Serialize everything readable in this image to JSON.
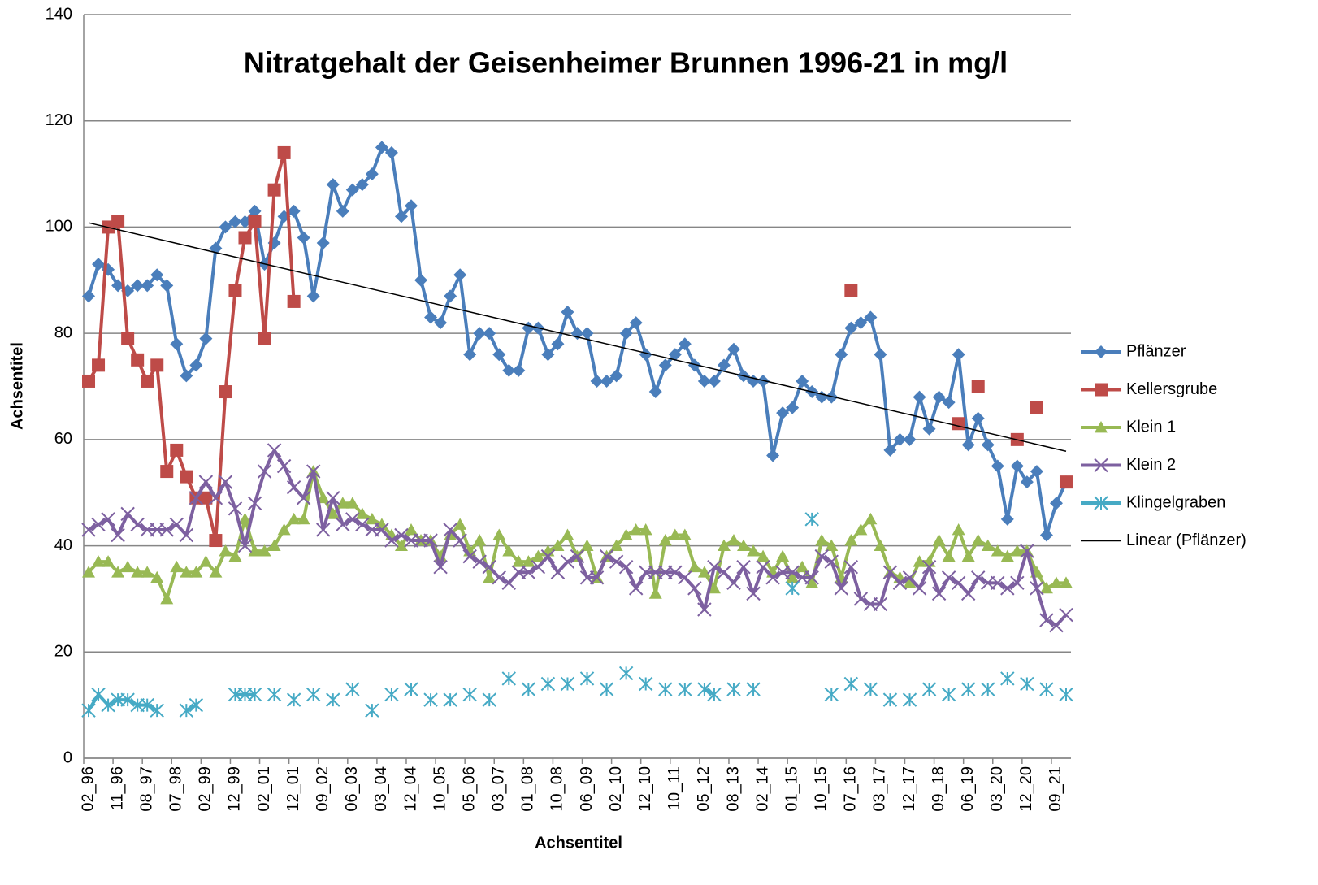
{
  "chart_data": {
    "type": "line",
    "title": "Nitratgehalt der Geisenheimer Brunnen 1996-21 in mg/l",
    "x_label": "Achsentitel",
    "y_label": "Achsentitel",
    "ylim": [
      0,
      140
    ],
    "yticks": [
      0,
      20,
      40,
      60,
      80,
      100,
      120,
      140
    ],
    "grid": true,
    "legend": "right",
    "categories": [
      "02_96",
      null,
      null,
      "11_96",
      null,
      null,
      "08_97",
      null,
      null,
      "07_98",
      null,
      null,
      "02_99",
      null,
      null,
      "12_99",
      null,
      null,
      "02_01",
      null,
      null,
      "12_01",
      null,
      null,
      "09_02",
      null,
      null,
      "06_03",
      null,
      null,
      "03_04",
      null,
      null,
      "12_04",
      null,
      null,
      "10_05",
      null,
      null,
      "05_06",
      null,
      null,
      "03_07",
      null,
      null,
      "01_08",
      null,
      null,
      "10_08",
      null,
      null,
      "06_09",
      null,
      null,
      "02_10",
      null,
      null,
      "12_10",
      null,
      null,
      "10_11",
      null,
      null,
      "05_12",
      null,
      null,
      "08_13",
      null,
      null,
      "02_14",
      null,
      null,
      "01_15",
      null,
      null,
      "10_15",
      null,
      null,
      "07_16",
      null,
      null,
      "03_17",
      null,
      null,
      "12_17",
      null,
      null,
      "09_18",
      null,
      null,
      "06_19",
      null,
      null,
      "03_20",
      null,
      null,
      "12_20",
      null,
      null,
      "09_21",
      null
    ],
    "series": [
      {
        "name": "Pflänzer",
        "color": "#4a7ebb",
        "marker": "diamond",
        "values": [
          87,
          93,
          92,
          89,
          88,
          89,
          89,
          91,
          89,
          78,
          72,
          74,
          79,
          96,
          100,
          101,
          101,
          103,
          93,
          97,
          102,
          103,
          98,
          87,
          97,
          108,
          103,
          107,
          108,
          110,
          115,
          114,
          102,
          104,
          90,
          83,
          82,
          87,
          91,
          76,
          80,
          80,
          76,
          73,
          73,
          81,
          81,
          76,
          78,
          84,
          80,
          80,
          71,
          71,
          72,
          80,
          82,
          76,
          69,
          74,
          76,
          78,
          74,
          71,
          71,
          74,
          77,
          72,
          71,
          71,
          57,
          65,
          66,
          71,
          69,
          68,
          68,
          76,
          81,
          82,
          83,
          76,
          58,
          60,
          60,
          68,
          62,
          68,
          67,
          76,
          59,
          64,
          59,
          55,
          45,
          55,
          52,
          54,
          42,
          48,
          52
        ]
      },
      {
        "name": "Kellersgrube",
        "color": "#be4b48",
        "marker": "square",
        "values": [
          71,
          74,
          100,
          101,
          79,
          75,
          71,
          74,
          54,
          58,
          53,
          49,
          49,
          41,
          69,
          88,
          98,
          101,
          79,
          107,
          114,
          86,
          null,
          null,
          null,
          null,
          null,
          null,
          null,
          null,
          null,
          null,
          null,
          null,
          null,
          null,
          null,
          null,
          null,
          null,
          null,
          null,
          null,
          null,
          null,
          null,
          null,
          null,
          null,
          null,
          null,
          null,
          null,
          null,
          null,
          null,
          null,
          null,
          null,
          null,
          null,
          null,
          null,
          null,
          null,
          null,
          null,
          null,
          null,
          null,
          null,
          null,
          null,
          null,
          null,
          null,
          null,
          null,
          88,
          null,
          null,
          null,
          null,
          null,
          null,
          null,
          null,
          null,
          null,
          63,
          null,
          70,
          null,
          null,
          null,
          60,
          null,
          66,
          null,
          null,
          52
        ]
      },
      {
        "name": "Klein 1",
        "color": "#98b954",
        "marker": "triangle",
        "values": [
          35,
          37,
          37,
          35,
          36,
          35,
          35,
          34,
          30,
          36,
          35,
          35,
          37,
          35,
          39,
          38,
          45,
          39,
          39,
          40,
          43,
          45,
          45,
          54,
          49,
          46,
          48,
          48,
          46,
          45,
          44,
          42,
          40,
          43,
          41,
          41,
          38,
          42,
          44,
          39,
          41,
          34,
          42,
          39,
          37,
          37,
          38,
          39,
          40,
          42,
          38,
          40,
          34,
          38,
          40,
          42,
          43,
          43,
          31,
          41,
          42,
          42,
          36,
          35,
          32,
          40,
          41,
          40,
          39,
          38,
          35,
          38,
          34,
          36,
          33,
          41,
          40,
          34,
          41,
          43,
          45,
          40,
          35,
          34,
          33,
          37,
          37,
          41,
          38,
          43,
          38,
          41,
          40,
          39,
          38,
          39,
          39,
          35,
          32,
          33,
          33
        ]
      },
      {
        "name": "Klein 2",
        "color": "#7d60a0",
        "marker": "x",
        "values": [
          43,
          44,
          45,
          42,
          46,
          44,
          43,
          43,
          43,
          44,
          42,
          49,
          52,
          49,
          52,
          47,
          40,
          48,
          54,
          58,
          55,
          51,
          49,
          54,
          43,
          49,
          44,
          45,
          44,
          43,
          43,
          41,
          42,
          41,
          41,
          41,
          36,
          43,
          41,
          38,
          37,
          36,
          34,
          33,
          35,
          35,
          36,
          38,
          35,
          37,
          38,
          34,
          34,
          38,
          37,
          36,
          32,
          35,
          35,
          35,
          35,
          34,
          32,
          28,
          36,
          35,
          33,
          36,
          31,
          36,
          34,
          35,
          35,
          34,
          34,
          38,
          37,
          32,
          36,
          30,
          29,
          29,
          35,
          33,
          34,
          32,
          36,
          31,
          34,
          33,
          31,
          34,
          33,
          33,
          32,
          33,
          39,
          32,
          26,
          25,
          27
        ]
      },
      {
        "name": "Klingelgraben",
        "color": "#46aac5",
        "marker": "star",
        "values": [
          9,
          12,
          10,
          11,
          11,
          10,
          10,
          9,
          null,
          null,
          9,
          10,
          null,
          null,
          null,
          12,
          12,
          12,
          null,
          12,
          null,
          11,
          null,
          12,
          null,
          11,
          null,
          13,
          null,
          9,
          null,
          12,
          null,
          13,
          null,
          11,
          null,
          11,
          null,
          12,
          null,
          11,
          null,
          15,
          null,
          13,
          null,
          14,
          null,
          14,
          null,
          15,
          null,
          13,
          null,
          16,
          null,
          14,
          null,
          13,
          null,
          13,
          null,
          13,
          12,
          null,
          13,
          null,
          13,
          null,
          null,
          null,
          32,
          null,
          45,
          null,
          12,
          null,
          14,
          null,
          13,
          null,
          11,
          null,
          11,
          null,
          13,
          null,
          12,
          null,
          13,
          null,
          13,
          null,
          15,
          null,
          14,
          null,
          13,
          null,
          12
        ]
      }
    ],
    "trendline": {
      "name": "Linear (Pflänzer)",
      "color": "#000000",
      "values": [
        100.8,
        57.8
      ]
    }
  }
}
